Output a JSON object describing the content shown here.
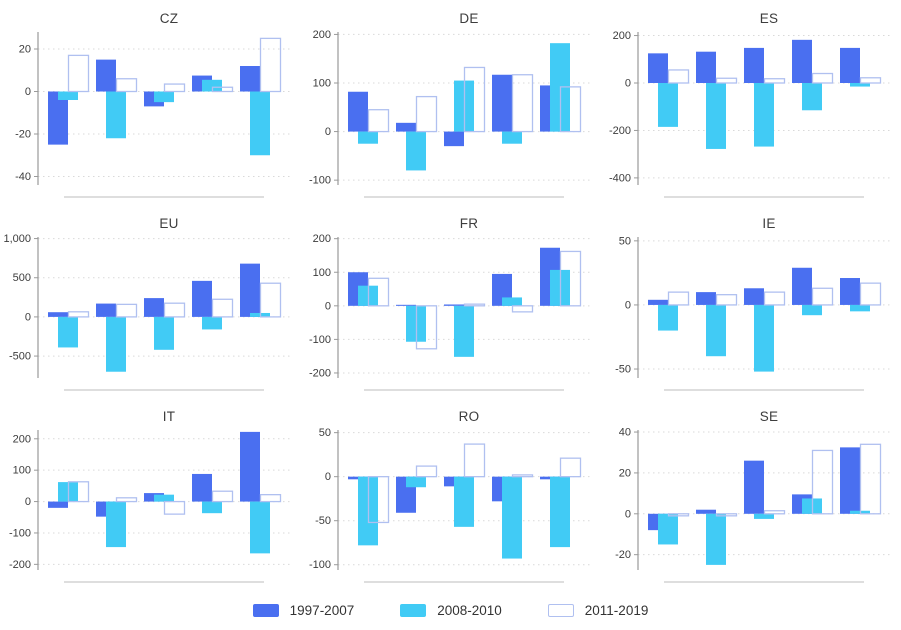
{
  "figure_title": "",
  "legend": {
    "items": [
      {
        "label": "1997-2007",
        "style": "filled",
        "color": "#4a6ff0"
      },
      {
        "label": "2008-2010",
        "style": "filled",
        "color": "#41cbf5"
      },
      {
        "label": "2011-2019",
        "style": "outlined",
        "color": "#b0c0f0"
      }
    ]
  },
  "style_colors": {
    "axis": "#9a9a9a",
    "gridline": "#d9d9d9",
    "baseline": "#c9c9c9",
    "tick_text": "#3c3c3c"
  },
  "chart_data": [
    {
      "type": "bar",
      "title": "CZ",
      "groups": 5,
      "x_tick_labels_visible": false,
      "series": [
        {
          "name": "1997-2007",
          "values": [
            -25,
            15,
            -7,
            7.5,
            12
          ]
        },
        {
          "name": "2008-2010",
          "values": [
            -4,
            -22,
            -5,
            5.5,
            -30
          ]
        },
        {
          "name": "2011-2019",
          "values": [
            17,
            6,
            3.5,
            2,
            25
          ]
        }
      ],
      "yticks": [
        20,
        0,
        -20,
        -40
      ],
      "ytick_labels": [
        "20",
        "0",
        "-20",
        "-40"
      ],
      "ylim": [
        -44,
        28
      ]
    },
    {
      "type": "bar",
      "title": "DE",
      "groups": 5,
      "x_tick_labels_visible": false,
      "series": [
        {
          "name": "1997-2007",
          "values": [
            82,
            18,
            -30,
            117,
            95
          ]
        },
        {
          "name": "2008-2010",
          "values": [
            -25,
            -80,
            105,
            -25,
            182
          ]
        },
        {
          "name": "2011-2019",
          "values": [
            45,
            72,
            132,
            117,
            92
          ]
        }
      ],
      "yticks": [
        200,
        100,
        0,
        -100
      ],
      "ytick_labels": [
        "200",
        "100",
        "0",
        "-100"
      ],
      "ylim": [
        -110,
        205
      ]
    },
    {
      "type": "bar",
      "title": "ES",
      "groups": 5,
      "x_tick_labels_visible": false,
      "series": [
        {
          "name": "1997-2007",
          "values": [
            125,
            132,
            148,
            182,
            148
          ]
        },
        {
          "name": "2008-2010",
          "values": [
            -185,
            -278,
            -268,
            -115,
            -15
          ]
        },
        {
          "name": "2011-2019",
          "values": [
            55,
            20,
            18,
            40,
            22
          ]
        }
      ],
      "yticks": [
        200,
        0,
        -200,
        -400
      ],
      "ytick_labels": [
        "200",
        "0",
        "-200",
        "-400"
      ],
      "ylim": [
        -430,
        215
      ]
    },
    {
      "type": "bar",
      "title": "EU",
      "groups": 5,
      "x_tick_labels_visible": false,
      "series": [
        {
          "name": "1997-2007",
          "values": [
            60,
            170,
            240,
            460,
            680
          ]
        },
        {
          "name": "2008-2010",
          "values": [
            -390,
            -700,
            -420,
            -160,
            50
          ]
        },
        {
          "name": "2011-2019",
          "values": [
            65,
            160,
            175,
            225,
            430
          ]
        }
      ],
      "yticks": [
        1000,
        500,
        0,
        -500
      ],
      "ytick_labels": [
        "1,000",
        "500",
        "0",
        "-500"
      ],
      "ylim": [
        -780,
        1020
      ]
    },
    {
      "type": "bar",
      "title": "FR",
      "groups": 5,
      "x_tick_labels_visible": false,
      "series": [
        {
          "name": "1997-2007",
          "values": [
            100,
            3,
            4,
            95,
            173
          ]
        },
        {
          "name": "2008-2010",
          "values": [
            60,
            -107,
            -152,
            25,
            107
          ]
        },
        {
          "name": "2011-2019",
          "values": [
            82,
            -128,
            5,
            -18,
            162
          ]
        }
      ],
      "yticks": [
        200,
        100,
        0,
        -100,
        -200
      ],
      "ytick_labels": [
        "200",
        "100",
        "0",
        "-100",
        "-200"
      ],
      "ylim": [
        -215,
        205
      ]
    },
    {
      "type": "bar",
      "title": "IE",
      "groups": 5,
      "x_tick_labels_visible": false,
      "series": [
        {
          "name": "1997-2007",
          "values": [
            4,
            10,
            13,
            29,
            21
          ]
        },
        {
          "name": "2008-2010",
          "values": [
            -20,
            -40,
            -52,
            -8,
            -5
          ]
        },
        {
          "name": "2011-2019",
          "values": [
            10,
            8,
            10,
            13,
            17
          ]
        }
      ],
      "yticks": [
        50,
        0,
        -50
      ],
      "ytick_labels": [
        "50",
        "0",
        "-50"
      ],
      "ylim": [
        -57,
        53
      ]
    },
    {
      "type": "bar",
      "title": "IT",
      "groups": 5,
      "x_tick_labels_visible": false,
      "series": [
        {
          "name": "1997-2007",
          "values": [
            -20,
            -48,
            27,
            88,
            222
          ]
        },
        {
          "name": "2008-2010",
          "values": [
            62,
            -145,
            22,
            -37,
            -165
          ]
        },
        {
          "name": "2011-2019",
          "values": [
            63,
            12,
            -40,
            33,
            22
          ]
        }
      ],
      "yticks": [
        200,
        100,
        0,
        -100,
        -200
      ],
      "ytick_labels": [
        "200",
        "100",
        "0",
        "-100",
        "-200"
      ],
      "ylim": [
        -218,
        228
      ]
    },
    {
      "type": "bar",
      "title": "RO",
      "groups": 5,
      "x_tick_labels_visible": false,
      "series": [
        {
          "name": "1997-2007",
          "values": [
            -3,
            -41,
            -11,
            -28,
            -3
          ]
        },
        {
          "name": "2008-2010",
          "values": [
            -78,
            -12,
            -57,
            -93,
            -80
          ]
        },
        {
          "name": "2011-2019",
          "values": [
            -52,
            12,
            37,
            2,
            21
          ]
        }
      ],
      "yticks": [
        50,
        0,
        -50,
        -100
      ],
      "ytick_labels": [
        "50",
        "0",
        "-50",
        "-100"
      ],
      "ylim": [
        -106,
        53
      ]
    },
    {
      "type": "bar",
      "title": "SE",
      "groups": 5,
      "x_tick_labels_visible": false,
      "series": [
        {
          "name": "1997-2007",
          "values": [
            -8,
            2,
            26,
            9.5,
            32.5
          ]
        },
        {
          "name": "2008-2010",
          "values": [
            -15,
            -25,
            -2.5,
            7.5,
            1.5
          ]
        },
        {
          "name": "2011-2019",
          "values": [
            -1,
            -1,
            1.5,
            31,
            34
          ]
        }
      ],
      "yticks": [
        40,
        20,
        0,
        -20
      ],
      "ytick_labels": [
        "40",
        "20",
        "0",
        "-20"
      ],
      "ylim": [
        -27.5,
        41
      ]
    }
  ]
}
